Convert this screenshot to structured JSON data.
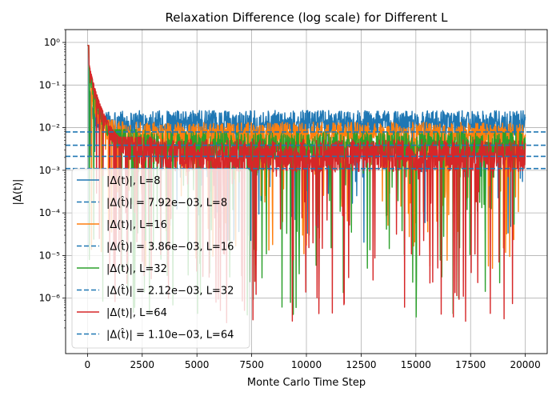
{
  "chart_data": {
    "type": "line",
    "title": "Relaxation Difference (log scale) for Different L",
    "xlabel": "Monte Carlo Time Step",
    "ylabel": "|Δ(t)|",
    "xlim": [
      -1000,
      21000
    ],
    "ylim": [
      5e-08,
      2
    ],
    "yscale": "log",
    "grid": true,
    "legend_position": "lower-left",
    "x_ticks": [
      {
        "value": 0,
        "label": "0"
      },
      {
        "value": 2500,
        "label": "2500"
      },
      {
        "value": 5000,
        "label": "5000"
      },
      {
        "value": 7500,
        "label": "7500"
      },
      {
        "value": 10000,
        "label": "10000"
      },
      {
        "value": 12500,
        "label": "12500"
      },
      {
        "value": 15000,
        "label": "15000"
      },
      {
        "value": 17500,
        "label": "17500"
      },
      {
        "value": 20000,
        "label": "20000"
      }
    ],
    "y_ticks": [
      {
        "value": 1e-06,
        "label": "10⁻⁶"
      },
      {
        "value": 1e-05,
        "label": "10⁻⁵"
      },
      {
        "value": 0.0001,
        "label": "10⁻⁴"
      },
      {
        "value": 0.001,
        "label": "10⁻³"
      },
      {
        "value": 0.01,
        "label": "10⁻²"
      },
      {
        "value": 0.1,
        "label": "10⁻¹"
      },
      {
        "value": 1,
        "label": "10⁰"
      }
    ],
    "series": [
      {
        "name": "|Δ(t)|, L=8",
        "L": 8,
        "color": "#1f77b4",
        "x_range": [
          0,
          20000
        ],
        "initial": 0.85,
        "noise_center": 0.012,
        "noise_max": 0.028,
        "noise_min": 1.5e-05
      },
      {
        "name": "|Δ(t)|, L=16",
        "L": 16,
        "color": "#ff7f0e",
        "x_range": [
          0,
          20000
        ],
        "initial": 0.85,
        "noise_center": 0.006,
        "noise_max": 0.015,
        "noise_min": 5e-06
      },
      {
        "name": "|Δ(t)|, L=32",
        "L": 32,
        "color": "#2ca02c",
        "x_range": [
          0,
          20000
        ],
        "initial": 0.85,
        "noise_center": 0.0035,
        "noise_max": 0.009,
        "noise_min": 3e-07
      },
      {
        "name": "|Δ(t)|, L=64",
        "L": 64,
        "color": "#d62728",
        "x_range": [
          0,
          20000
        ],
        "initial": 0.85,
        "noise_center": 0.002,
        "noise_max": 0.006,
        "noise_min": 2.5e-07
      }
    ],
    "reference_lines": [
      {
        "name": "|Δ(t̂)| = 7.92e−03, L=8",
        "value": 0.00792,
        "color": "#1f77b4",
        "style": "dashed"
      },
      {
        "name": "|Δ(t̂)| = 3.86e−03, L=16",
        "value": 0.00386,
        "color": "#1f77b4",
        "style": "dashed"
      },
      {
        "name": "|Δ(t̂)| = 2.12e−03, L=32",
        "value": 0.00212,
        "color": "#1f77b4",
        "style": "dashed"
      },
      {
        "name": "|Δ(t̂)| = 1.10e−03, L=64",
        "value": 0.0011,
        "color": "#1f77b4",
        "style": "dashed"
      }
    ],
    "legend": [
      {
        "label": "|Δ(t)|, L=8",
        "color": "#1f77b4",
        "style": "solid"
      },
      {
        "label": "|Δ(t̂)| = 7.92e−03, L=8",
        "color": "#1f77b4",
        "style": "dashed"
      },
      {
        "label": "|Δ(t)|, L=16",
        "color": "#ff7f0e",
        "style": "solid"
      },
      {
        "label": "|Δ(t̂)| = 3.86e−03, L=16",
        "color": "#1f77b4",
        "style": "dashed"
      },
      {
        "label": "|Δ(t)|, L=32",
        "color": "#2ca02c",
        "style": "solid"
      },
      {
        "label": "|Δ(t̂)| = 2.12e−03, L=32",
        "color": "#1f77b4",
        "style": "dashed"
      },
      {
        "label": "|Δ(t)|, L=64",
        "color": "#d62728",
        "style": "solid"
      },
      {
        "label": "|Δ(t̂)| = 1.10e−03, L=64",
        "color": "#1f77b4",
        "style": "dashed"
      }
    ]
  }
}
